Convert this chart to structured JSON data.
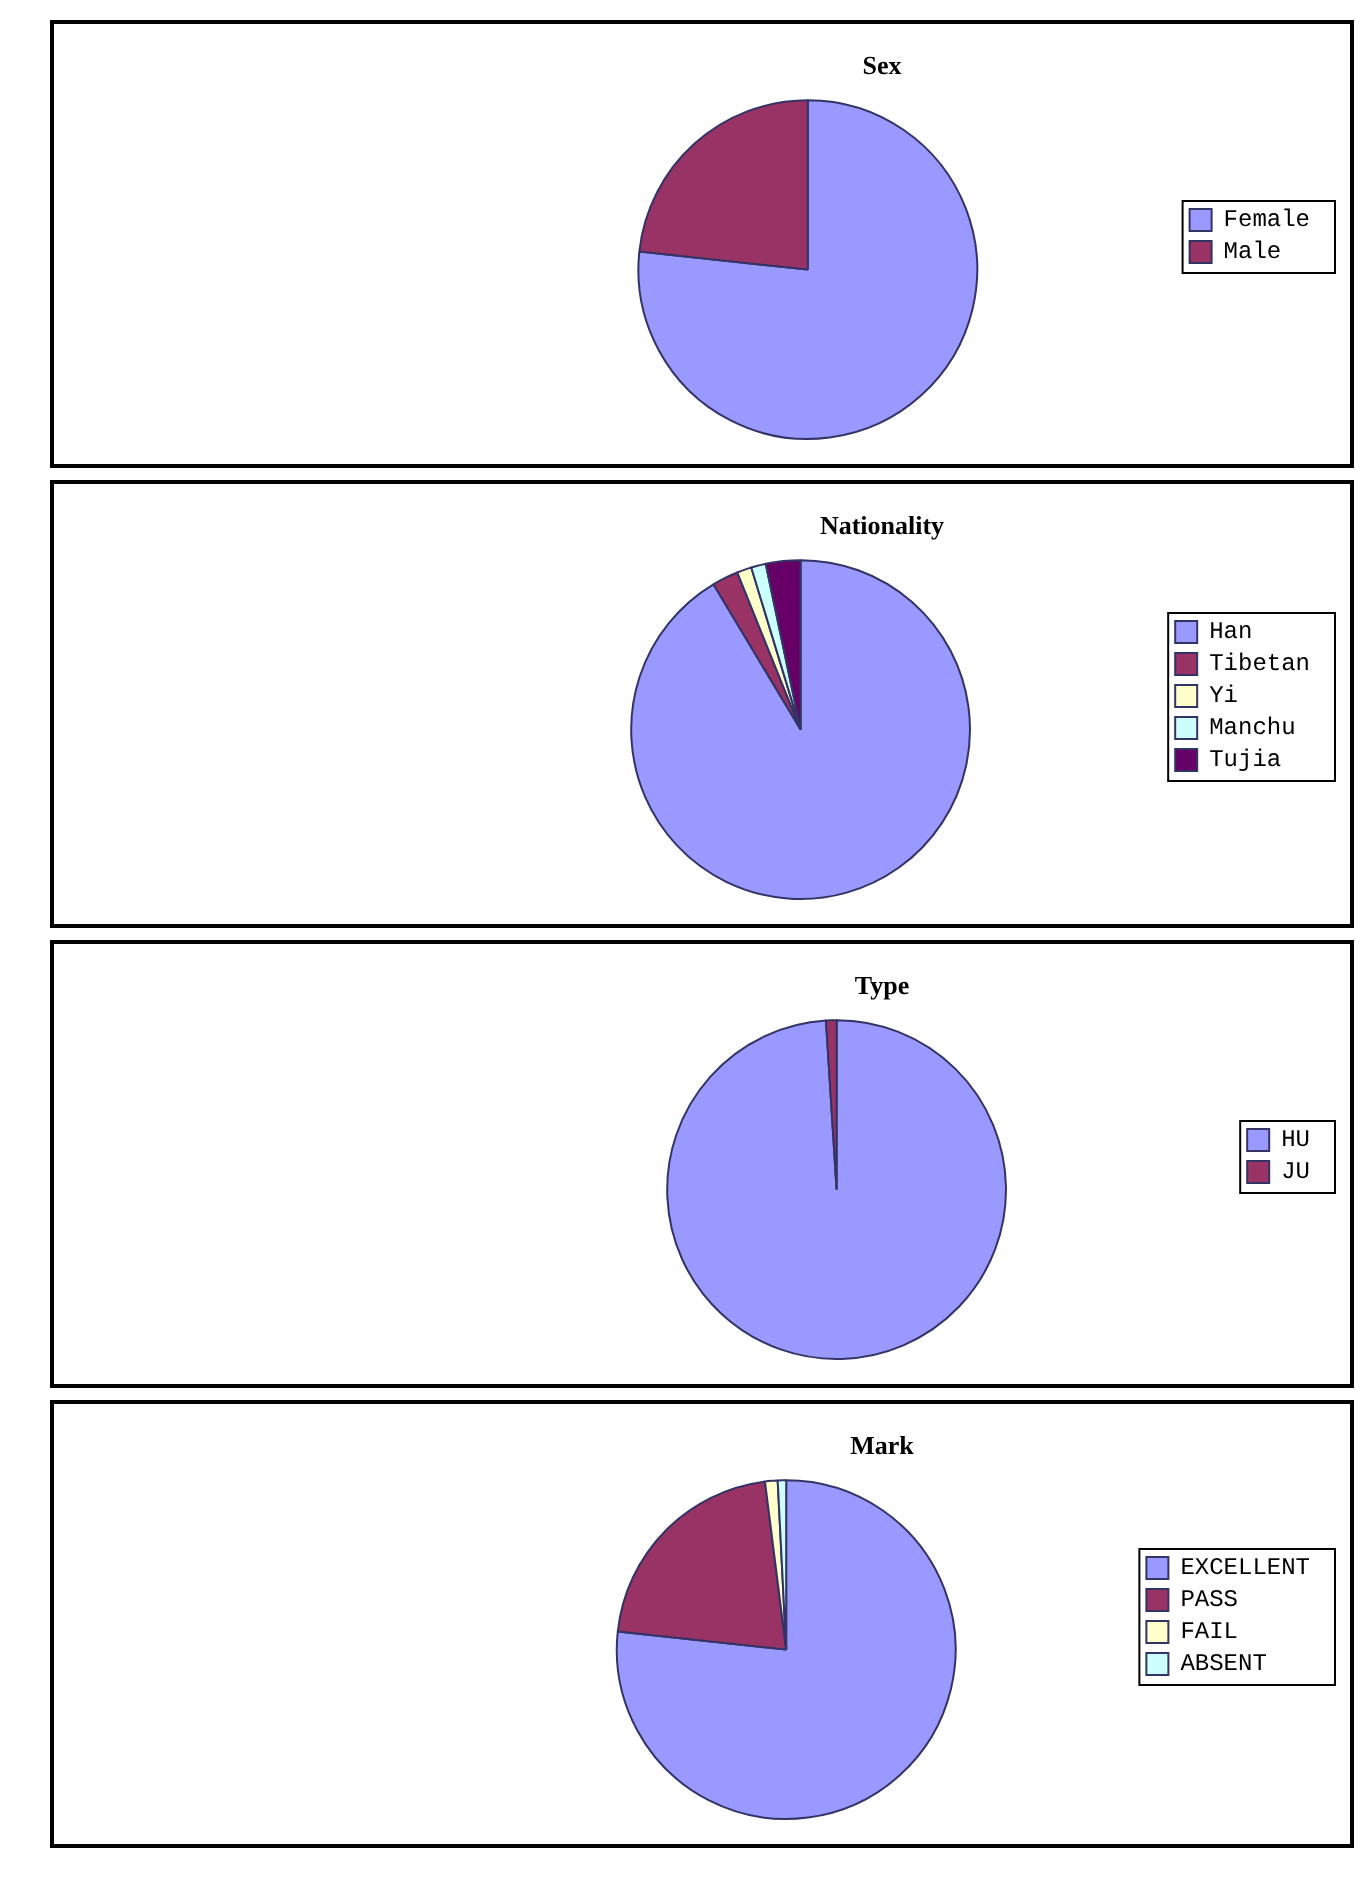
{
  "chart_data": [
    {
      "type": "pie",
      "title": "Sex",
      "categories": [
        "Female",
        "Male"
      ],
      "values": [
        76.7,
        23.3
      ],
      "colors": [
        "#9999ff",
        "#993366"
      ],
      "legend": "right"
    },
    {
      "type": "pie",
      "title": "Nationality",
      "categories": [
        "Han",
        "Tibetan",
        "Yi",
        "Manchu",
        "Tujia"
      ],
      "values": [
        91.4,
        2.5,
        1.4,
        1.4,
        3.3
      ],
      "colors": [
        "#9999ff",
        "#993366",
        "#ffffcc",
        "#ccffff",
        "#660066"
      ],
      "legend": "right"
    },
    {
      "type": "pie",
      "title": "Type",
      "categories": [
        "HU",
        "JU"
      ],
      "values": [
        99,
        1
      ],
      "colors": [
        "#9999ff",
        "#993366"
      ],
      "legend": "right"
    },
    {
      "type": "pie",
      "title": "Mark",
      "categories": [
        "EXCELLENT",
        "PASS",
        "FAIL",
        "ABSENT"
      ],
      "values": [
        76.7,
        21.3,
        1.2,
        0.8
      ],
      "colors": [
        "#9999ff",
        "#993366",
        "#ffffcc",
        "#ccffff"
      ],
      "legend": "right"
    }
  ]
}
